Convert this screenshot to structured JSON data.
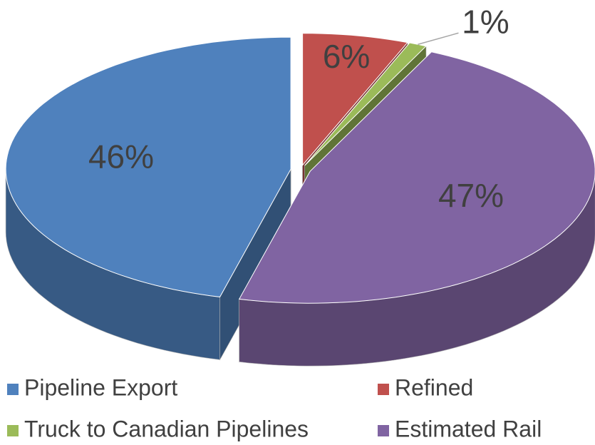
{
  "chart_data": {
    "type": "pie",
    "categories": [
      "Pipeline Export",
      "Refined",
      "Truck to Canadian Pipelines",
      "Estimated Rail"
    ],
    "values": [
      46,
      6,
      1,
      47
    ],
    "value_labels": [
      "46%",
      "6%",
      "1%",
      "47%"
    ],
    "colors": [
      "#4f81bd",
      "#c0504d",
      "#9bbb59",
      "#8064a2"
    ],
    "legend": "bottom"
  }
}
